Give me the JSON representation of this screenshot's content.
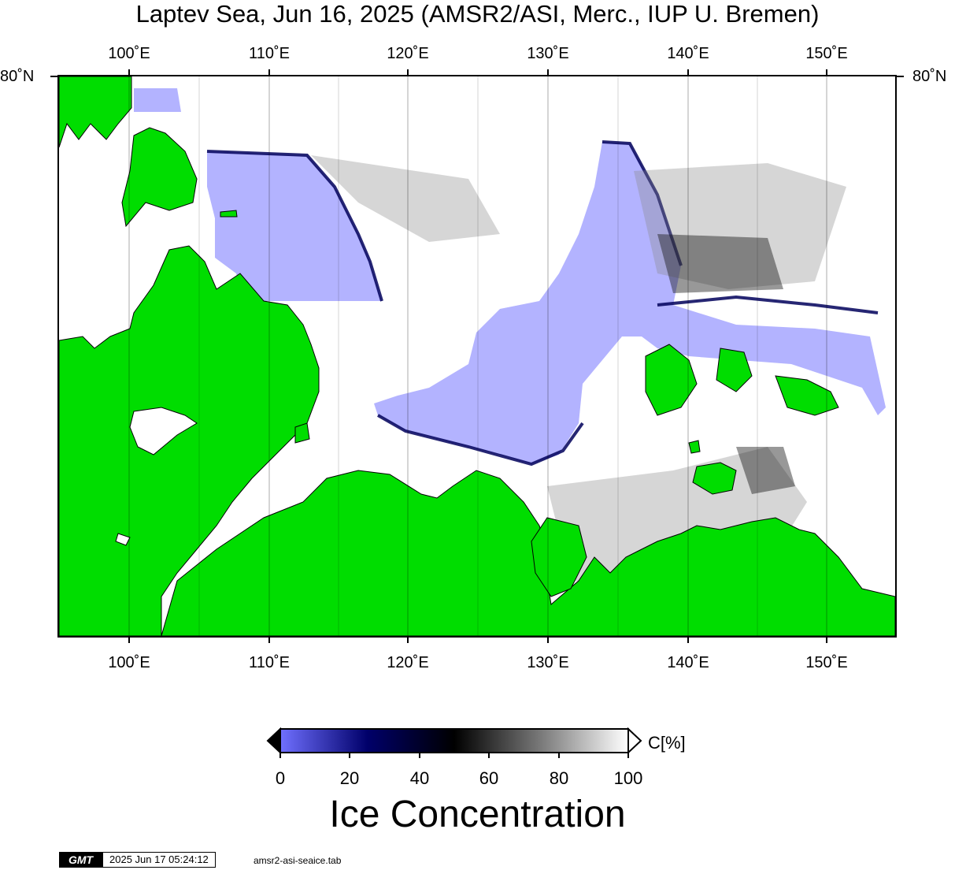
{
  "title": "Laptev Sea, Jun 16, 2025 (AMSR2/ASI, Merc., IUP U. Bremen)",
  "map": {
    "lon_labels": [
      "100˚E",
      "110˚E",
      "120˚E",
      "130˚E",
      "140˚E",
      "150˚E"
    ],
    "lon_values": [
      100,
      110,
      120,
      130,
      140,
      150
    ],
    "lat_label": "80˚N",
    "lon_range": [
      95,
      155
    ],
    "colors": {
      "land": "#00dd00",
      "open_water": "#ffffff",
      "low_concentration": "#b3b3ff",
      "coast_line": "#000000"
    }
  },
  "colorbar": {
    "tick_labels": [
      "0",
      "20",
      "40",
      "60",
      "80",
      "100"
    ],
    "unit": "C[%]",
    "title": "Ice Concentration",
    "gradient_colors": [
      "#7070ff",
      "#00006a",
      "#000000",
      "#7a7a7a",
      "#ffffff"
    ]
  },
  "footer": {
    "logo": "GMT",
    "timestamp": "2025 Jun 17 05:24:12",
    "filename": "amsr2-asi-seaice.tab"
  }
}
